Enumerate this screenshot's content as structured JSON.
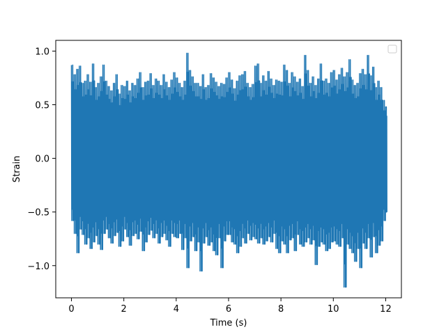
{
  "chart_data": {
    "type": "line",
    "title": "",
    "xlabel": "Time (s)",
    "ylabel": "Strain",
    "xlim": [
      -0.6,
      12.6
    ],
    "ylim": [
      -1.3,
      1.1
    ],
    "xticks": [
      0,
      2,
      4,
      6,
      8,
      10,
      12
    ],
    "xtick_labels": [
      "0",
      "2",
      "4",
      "6",
      "8",
      "10",
      "12"
    ],
    "yticks": [
      -1.0,
      -0.5,
      0.0,
      0.5,
      1.0
    ],
    "ytick_labels": [
      "−1.0",
      "−0.5",
      "0.0",
      "0.5",
      "1.0"
    ],
    "grid": false,
    "legend": {
      "placement": "upper-right",
      "entries": []
    },
    "series": [
      {
        "color": "#1f77b4",
        "x": [
          0.0,
          0.1,
          0.2,
          0.3,
          0.4,
          0.5,
          0.6,
          0.7,
          0.8,
          0.9,
          1.0,
          1.1,
          1.2,
          1.3,
          1.4,
          1.5,
          1.6,
          1.7,
          1.8,
          1.9,
          2.0,
          2.1,
          2.2,
          2.3,
          2.4,
          2.5,
          2.6,
          2.7,
          2.8,
          2.9,
          3.0,
          3.1,
          3.2,
          3.3,
          3.4,
          3.5,
          3.6,
          3.7,
          3.8,
          3.9,
          4.0,
          4.1,
          4.2,
          4.3,
          4.4,
          4.5,
          4.6,
          4.7,
          4.8,
          4.9,
          5.0,
          5.1,
          5.2,
          5.3,
          5.4,
          5.5,
          5.6,
          5.7,
          5.8,
          5.9,
          6.0,
          6.1,
          6.2,
          6.3,
          6.4,
          6.5,
          6.6,
          6.7,
          6.8,
          6.9,
          7.0,
          7.1,
          7.2,
          7.3,
          7.4,
          7.5,
          7.6,
          7.7,
          7.8,
          7.9,
          8.0,
          8.1,
          8.2,
          8.3,
          8.4,
          8.5,
          8.6,
          8.7,
          8.8,
          8.9,
          9.0,
          9.1,
          9.2,
          9.3,
          9.4,
          9.5,
          9.6,
          9.7,
          9.8,
          9.9,
          10.0,
          10.1,
          10.2,
          10.3,
          10.4,
          10.5,
          10.6,
          10.7,
          10.8,
          10.9,
          11.0,
          11.1,
          11.2,
          11.3,
          11.4,
          11.5,
          11.6,
          11.7,
          11.8,
          11.9,
          12.0
        ],
        "y_max": [
          0.87,
          0.78,
          0.83,
          0.86,
          0.7,
          0.72,
          0.78,
          0.71,
          0.88,
          0.66,
          0.7,
          0.76,
          0.87,
          0.72,
          0.67,
          0.63,
          0.7,
          0.78,
          0.6,
          0.68,
          0.67,
          0.72,
          0.63,
          0.7,
          0.68,
          0.74,
          0.8,
          0.66,
          0.71,
          0.72,
          0.79,
          0.68,
          0.74,
          0.72,
          0.68,
          0.78,
          0.71,
          0.66,
          0.73,
          0.8,
          0.75,
          0.7,
          0.66,
          0.72,
          0.98,
          0.82,
          0.76,
          0.7,
          0.7,
          0.67,
          0.78,
          0.66,
          0.68,
          0.79,
          0.75,
          0.71,
          0.67,
          0.7,
          0.69,
          0.75,
          0.8,
          0.73,
          0.65,
          0.72,
          0.77,
          0.78,
          0.81,
          0.7,
          0.66,
          0.69,
          0.86,
          0.88,
          0.7,
          0.77,
          0.72,
          0.81,
          0.74,
          0.68,
          0.73,
          0.72,
          0.71,
          0.87,
          0.82,
          0.7,
          0.8,
          0.76,
          0.71,
          0.74,
          0.67,
          0.96,
          0.82,
          0.7,
          0.76,
          0.68,
          0.74,
          0.88,
          0.72,
          0.74,
          0.7,
          0.8,
          0.82,
          0.73,
          0.78,
          0.84,
          0.76,
          0.8,
          0.92,
          0.73,
          0.68,
          0.7,
          0.79,
          0.83,
          0.78,
          0.96,
          0.77,
          0.85,
          0.66,
          0.72,
          0.66,
          0.54,
          0.48
        ],
        "y_min": [
          -0.58,
          -0.7,
          -0.88,
          -0.66,
          -0.71,
          -0.8,
          -0.74,
          -0.84,
          -0.78,
          -0.72,
          -0.8,
          -0.85,
          -0.7,
          -0.66,
          -0.74,
          -0.79,
          -0.72,
          -0.69,
          -0.82,
          -0.77,
          -0.66,
          -0.73,
          -0.81,
          -0.72,
          -0.7,
          -0.75,
          -0.68,
          -0.86,
          -0.78,
          -0.71,
          -0.67,
          -0.74,
          -0.7,
          -0.79,
          -0.73,
          -0.7,
          -0.76,
          -0.82,
          -0.7,
          -0.73,
          -0.74,
          -0.7,
          -0.85,
          -0.74,
          -1.02,
          -0.77,
          -0.73,
          -0.86,
          -0.78,
          -1.05,
          -0.79,
          -0.73,
          -0.81,
          -0.78,
          -0.86,
          -0.9,
          -0.74,
          -1.02,
          -0.77,
          -0.71,
          -0.71,
          -0.78,
          -0.8,
          -0.88,
          -0.82,
          -0.74,
          -0.79,
          -0.7,
          -0.76,
          -0.73,
          -0.75,
          -0.79,
          -0.74,
          -0.8,
          -0.77,
          -0.73,
          -0.78,
          -0.7,
          -0.84,
          -0.88,
          -0.77,
          -0.8,
          -0.88,
          -0.76,
          -0.74,
          -0.86,
          -0.71,
          -0.8,
          -0.82,
          -0.78,
          -0.74,
          -0.8,
          -0.76,
          -0.99,
          -0.82,
          -0.78,
          -0.8,
          -0.86,
          -0.84,
          -0.78,
          -0.77,
          -0.8,
          -0.82,
          -0.74,
          -1.2,
          -0.8,
          -0.84,
          -0.88,
          -0.96,
          -0.84,
          -1.02,
          -0.79,
          -0.84,
          -0.74,
          -0.92,
          -0.73,
          -0.88,
          -0.81,
          -0.77,
          -0.58,
          -0.5
        ]
      }
    ]
  }
}
